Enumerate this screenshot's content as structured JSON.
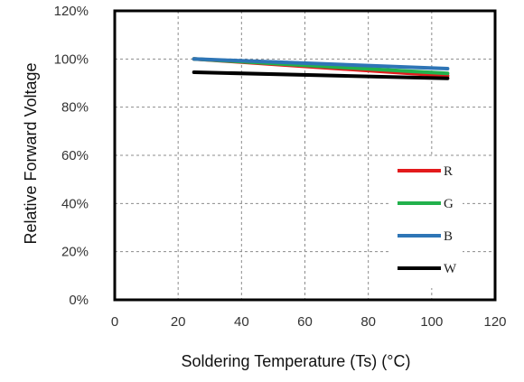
{
  "chart_data": {
    "type": "line",
    "title": "",
    "xlabel": "Soldering Temperature (Ts) (°C)",
    "ylabel": "Relative Forward Voltage",
    "xlim": [
      0,
      120
    ],
    "ylim": [
      0,
      120
    ],
    "x_ticks": [
      0,
      20,
      40,
      60,
      80,
      100,
      120
    ],
    "y_ticks": [
      0,
      20,
      40,
      60,
      80,
      100,
      120
    ],
    "y_tick_labels": [
      "0%",
      "20%",
      "40%",
      "60%",
      "80%",
      "100%",
      "120%"
    ],
    "grid": true,
    "legend_position": "bottom-right",
    "series": [
      {
        "name": "R",
        "color": "#e31a1c",
        "x": [
          25,
          105
        ],
        "y": [
          100,
          93
        ]
      },
      {
        "name": "G",
        "color": "#22b14c",
        "x": [
          25,
          105
        ],
        "y": [
          100,
          94
        ]
      },
      {
        "name": "B",
        "color": "#2e75b6",
        "x": [
          25,
          105
        ],
        "y": [
          100,
          96
        ]
      },
      {
        "name": "W",
        "color": "#000000",
        "x": [
          25,
          105
        ],
        "y": [
          94.5,
          92
        ]
      }
    ]
  }
}
